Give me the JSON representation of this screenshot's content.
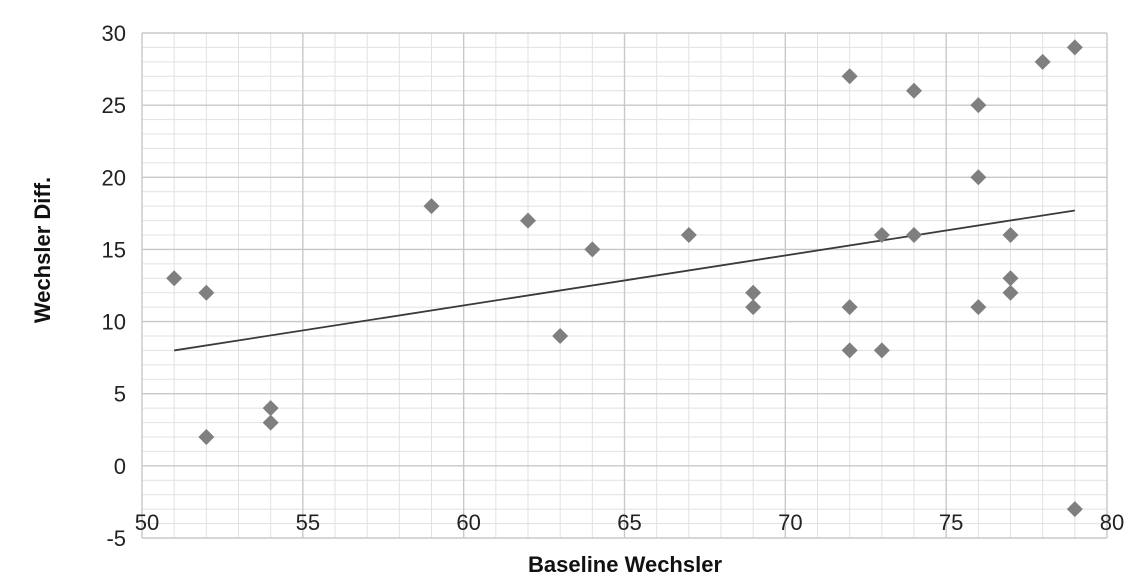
{
  "chart_data": {
    "type": "scatter",
    "title": "",
    "xlabel": "Baseline Wechsler",
    "ylabel": "Wechsler Diff.",
    "xlim": [
      50,
      80
    ],
    "ylim": [
      -5,
      30
    ],
    "x_ticks": [
      50,
      55,
      60,
      65,
      70,
      75,
      80
    ],
    "y_ticks": [
      -5,
      0,
      5,
      10,
      15,
      20,
      25,
      30
    ],
    "x_tick_labels": [
      "50",
      "55",
      "60",
      "65",
      "70",
      "75",
      "80"
    ],
    "y_tick_labels": [
      "-5",
      "0",
      "5",
      "10",
      "15",
      "20",
      "25",
      "30"
    ],
    "grid": true,
    "minor_grid": true,
    "legend": "none",
    "marker": "diamond",
    "marker_color": "#7f7f7f",
    "trendline_color": "#3a3a3a",
    "grid_color": "#c8c8c8",
    "points": [
      {
        "x": 51,
        "y": 13
      },
      {
        "x": 52,
        "y": 12
      },
      {
        "x": 52,
        "y": 2
      },
      {
        "x": 54,
        "y": 4
      },
      {
        "x": 54,
        "y": 3
      },
      {
        "x": 59,
        "y": 18
      },
      {
        "x": 62,
        "y": 17
      },
      {
        "x": 63,
        "y": 9
      },
      {
        "x": 64,
        "y": 15
      },
      {
        "x": 67,
        "y": 16
      },
      {
        "x": 69,
        "y": 12
      },
      {
        "x": 69,
        "y": 11
      },
      {
        "x": 72,
        "y": 27
      },
      {
        "x": 72,
        "y": 11
      },
      {
        "x": 72,
        "y": 8
      },
      {
        "x": 73,
        "y": 16
      },
      {
        "x": 73,
        "y": 8
      },
      {
        "x": 74,
        "y": 26
      },
      {
        "x": 74,
        "y": 16
      },
      {
        "x": 76,
        "y": 25
      },
      {
        "x": 76,
        "y": 20
      },
      {
        "x": 76,
        "y": 11
      },
      {
        "x": 77,
        "y": 16
      },
      {
        "x": 77,
        "y": 13
      },
      {
        "x": 77,
        "y": 12
      },
      {
        "x": 78,
        "y": 28
      },
      {
        "x": 79,
        "y": 29
      },
      {
        "x": 79,
        "y": -3
      }
    ],
    "trendline": {
      "type": "linear",
      "x": [
        51,
        79
      ],
      "y": [
        8,
        17.7
      ]
    }
  }
}
